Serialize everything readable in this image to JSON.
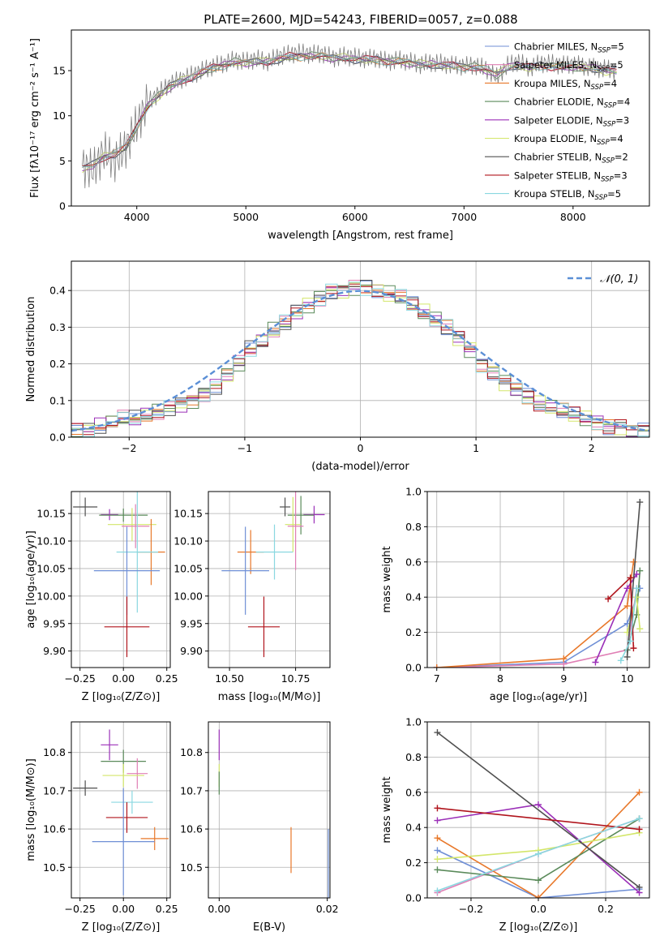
{
  "title": "PLATE=2600, MJD=54243, FIBERID=0057, z=0.088",
  "colors": {
    "chabrier_miles": "#6f8fd6",
    "salpeter_miles": "#e07fb5",
    "kroupa_miles": "#e8782a",
    "chabrier_elodie": "#5a8a5a",
    "salpeter_elodie": "#9b30b8",
    "kroupa_elodie": "#d3e66a",
    "chabrier_stelib": "#505050",
    "salpeter_stelib": "#b0141c",
    "kroupa_stelib": "#8ad8e0",
    "normal_curve": "#5b8fd6"
  },
  "chart_data": [
    {
      "type": "line",
      "panel": "spectrum",
      "xlabel": "wavelength [Angstrom, rest frame]",
      "ylabel": "Flux [fλ10⁻¹⁷ erg cm⁻² s⁻¹ A⁻¹]",
      "xlim": [
        3400,
        8700
      ],
      "ylim": [
        0,
        19.5
      ],
      "xticks": [
        "4000",
        "5000",
        "6000",
        "7000",
        "8000"
      ],
      "yticks": [
        "0",
        "5",
        "10",
        "15"
      ],
      "grid": false,
      "legend_position": "upper-right",
      "x": [
        3500,
        3600,
        3700,
        3800,
        3900,
        4000,
        4100,
        4200,
        4300,
        4400,
        4500,
        4600,
        4700,
        4800,
        4900,
        5000,
        5100,
        5200,
        5300,
        5400,
        5500,
        5600,
        5700,
        5800,
        5900,
        6000,
        6100,
        6200,
        6300,
        6400,
        6500,
        6600,
        6700,
        6800,
        6900,
        7000,
        7100,
        7200,
        7300,
        7400,
        7500,
        7600,
        7700,
        7800,
        7900,
        8000,
        8100,
        8200,
        8300,
        8400
      ],
      "observed": [
        4.5,
        4.0,
        6.0,
        5.0,
        6.5,
        9.0,
        11.5,
        12.5,
        13.5,
        14.0,
        14.5,
        15.0,
        15.5,
        15.8,
        16.2,
        16.0,
        16.3,
        16.0,
        16.6,
        16.8,
        17.0,
        16.8,
        16.9,
        16.4,
        16.6,
        16.5,
        16.3,
        16.4,
        16.0,
        16.2,
        16.0,
        15.7,
        15.9,
        15.8,
        15.6,
        15.5,
        15.6,
        15.2,
        14.3,
        15.6,
        16.0,
        15.3,
        15.8,
        15.8,
        15.6,
        15.7,
        15.5,
        15.3,
        15.2,
        15.0
      ],
      "model": [
        4.2,
        4.5,
        5.5,
        5.8,
        6.5,
        8.8,
        11.0,
        12.2,
        13.2,
        13.8,
        14.3,
        14.8,
        15.3,
        15.6,
        15.9,
        15.9,
        16.0,
        16.0,
        16.3,
        16.5,
        16.6,
        16.6,
        16.6,
        16.4,
        16.4,
        16.3,
        16.2,
        16.2,
        16.0,
        16.0,
        15.9,
        15.7,
        15.7,
        15.6,
        15.5,
        15.4,
        15.4,
        15.1,
        14.6,
        15.3,
        15.6,
        15.3,
        15.5,
        15.5,
        15.4,
        15.4,
        15.3,
        15.2,
        15.0,
        14.9
      ],
      "series": [
        {
          "name": "Chabrier MILES, N",
          "sub": "SSP",
          "suffix": "=5"
        },
        {
          "name": "Salpeter MILES, N",
          "sub": "SSP",
          "suffix": "=5"
        },
        {
          "name": "Kroupa MILES, N",
          "sub": "SSP",
          "suffix": "=4"
        },
        {
          "name": "Chabrier ELODIE, N",
          "sub": "SSP",
          "suffix": "=4"
        },
        {
          "name": "Salpeter ELODIE, N",
          "sub": "SSP",
          "suffix": "=3"
        },
        {
          "name": "Kroupa ELODIE, N",
          "sub": "SSP",
          "suffix": "=4"
        },
        {
          "name": "Chabrier STELIB, N",
          "sub": "SSP",
          "suffix": "=2"
        },
        {
          "name": "Salpeter STELIB, N",
          "sub": "SSP",
          "suffix": "=3"
        },
        {
          "name": "Kroupa STELIB, N",
          "sub": "SSP",
          "suffix": "=5"
        }
      ]
    },
    {
      "type": "histogram",
      "panel": "residuals",
      "xlabel": "(data-model)/error",
      "ylabel": "Normed distribution",
      "xlim": [
        -2.5,
        2.5
      ],
      "ylim": [
        0,
        0.48
      ],
      "xticks": [
        "−2",
        "−1",
        "0",
        "1",
        "2"
      ],
      "yticks": [
        "0.0",
        "0.1",
        "0.2",
        "0.3",
        "0.4"
      ],
      "grid": true,
      "legend": "𝒩(0, 1)",
      "legend_position": "upper-right",
      "bin_edges_start": -2.5,
      "bin_width": 0.1,
      "base_density": [
        0.02,
        0.02,
        0.03,
        0.04,
        0.05,
        0.05,
        0.06,
        0.07,
        0.08,
        0.09,
        0.1,
        0.12,
        0.14,
        0.17,
        0.2,
        0.24,
        0.26,
        0.29,
        0.31,
        0.34,
        0.36,
        0.38,
        0.4,
        0.4,
        0.41,
        0.41,
        0.4,
        0.39,
        0.38,
        0.36,
        0.34,
        0.32,
        0.3,
        0.27,
        0.24,
        0.2,
        0.18,
        0.15,
        0.13,
        0.11,
        0.09,
        0.08,
        0.07,
        0.06,
        0.05,
        0.04,
        0.03,
        0.03,
        0.02,
        0.02
      ]
    },
    {
      "type": "errorbar",
      "panel": "age-vs-Z",
      "xlabel": "Z [log₁₀(Z/Z⊙)]",
      "ylabel": "age  [log₁₀(age/yr)]",
      "xlim": [
        -0.3,
        0.27
      ],
      "ylim": [
        9.87,
        10.19
      ],
      "xticks": [
        "−0.25",
        "0.00",
        "0.25"
      ],
      "yticks": [
        "9.90",
        "9.95",
        "10.00",
        "10.05",
        "10.10",
        "10.15"
      ],
      "grid": true,
      "points": [
        {
          "series": "chabrier_stelib",
          "x": -0.22,
          "y": 10.162,
          "xerr": 0.07,
          "yerr": 0.017
        },
        {
          "series": "salpeter_elodie",
          "x": -0.08,
          "y": 10.148,
          "xerr": 0.05,
          "yerr": 0.01
        },
        {
          "series": "chabrier_elodie",
          "x": 0.0,
          "y": 10.147,
          "xerr": 0.14,
          "yerr": 0.012
        },
        {
          "series": "kroupa_elodie",
          "x": 0.05,
          "y": 10.13,
          "xerr": 0.14,
          "yerr": 0.03
        },
        {
          "series": "salpeter_miles",
          "x": 0.07,
          "y": 10.127,
          "xerr": 0.08,
          "yerr": 0.04
        },
        {
          "series": "kroupa_miles",
          "x": 0.16,
          "y": 10.08,
          "xerr": 0.08,
          "yerr": 0.06
        },
        {
          "series": "kroupa_stelib",
          "x": 0.08,
          "y": 10.08,
          "xerr": 0.12,
          "yerr": 0.11
        },
        {
          "series": "chabrier_miles",
          "x": 0.02,
          "y": 10.046,
          "xerr": 0.19,
          "yerr": 0.08
        },
        {
          "series": "salpeter_stelib",
          "x": 0.02,
          "y": 9.944,
          "xerr": 0.13,
          "yerr": 0.055
        }
      ]
    },
    {
      "type": "errorbar",
      "panel": "age-vs-mass",
      "xlabel": "mass [log₁₀(M/M⊙)]",
      "ylabel": "",
      "xlim": [
        10.42,
        10.88
      ],
      "ylim": [
        9.87,
        10.19
      ],
      "xticks": [
        "10.50",
        "10.75"
      ],
      "yticks": [
        "9.90",
        "9.95",
        "10.00",
        "10.05",
        "10.10",
        "10.15"
      ],
      "grid": true,
      "points": [
        {
          "series": "chabrier_stelib",
          "x": 10.71,
          "y": 10.162,
          "xerr": 0.02,
          "yerr": 0.017
        },
        {
          "series": "salpeter_elodie",
          "x": 10.82,
          "y": 10.148,
          "xerr": 0.04,
          "yerr": 0.016
        },
        {
          "series": "chabrier_elodie",
          "x": 10.77,
          "y": 10.147,
          "xerr": 0.05,
          "yerr": 0.035
        },
        {
          "series": "kroupa_elodie",
          "x": 10.74,
          "y": 10.13,
          "xerr": 0.03,
          "yerr": 0.05
        },
        {
          "series": "salpeter_miles",
          "x": 10.75,
          "y": 10.127,
          "xerr": 0.03,
          "yerr": 0.08
        },
        {
          "series": "kroupa_miles",
          "x": 10.58,
          "y": 10.08,
          "xerr": 0.05,
          "yerr": 0.04
        },
        {
          "series": "kroupa_stelib",
          "x": 10.67,
          "y": 10.08,
          "xerr": 0.07,
          "yerr": 0.05
        },
        {
          "series": "chabrier_miles",
          "x": 10.56,
          "y": 10.046,
          "xerr": 0.09,
          "yerr": 0.08
        },
        {
          "series": "salpeter_stelib",
          "x": 10.63,
          "y": 9.944,
          "xerr": 0.06,
          "yerr": 0.055
        }
      ]
    },
    {
      "type": "line",
      "panel": "weight-vs-age",
      "xlabel": "age  [log₁₀(age/yr)]",
      "ylabel": "mass weight",
      "xlim": [
        6.85,
        10.35
      ],
      "ylim": [
        0,
        1.0
      ],
      "xticks": [
        "7",
        "8",
        "9",
        "10"
      ],
      "yticks": [
        "0.0",
        "0.2",
        "0.4",
        "0.6",
        "0.8",
        "1.0"
      ],
      "grid": true,
      "series": [
        {
          "key": "chabrier_miles",
          "x": [
            7.0,
            9.0,
            10.0,
            10.2
          ],
          "y": [
            0.0,
            0.03,
            0.25,
            0.45
          ]
        },
        {
          "key": "salpeter_miles",
          "x": [
            7.0,
            9.0,
            10.0,
            10.15
          ],
          "y": [
            0.0,
            0.02,
            0.1,
            0.45
          ]
        },
        {
          "key": "kroupa_miles",
          "x": [
            7.0,
            9.0,
            10.0,
            10.1
          ],
          "y": [
            0.0,
            0.05,
            0.35,
            0.6
          ]
        },
        {
          "key": "chabrier_elodie",
          "x": [
            10.0,
            10.15,
            10.2
          ],
          "y": [
            0.1,
            0.3,
            0.55
          ]
        },
        {
          "key": "salpeter_elodie",
          "x": [
            9.5,
            10.0,
            10.15
          ],
          "y": [
            0.03,
            0.45,
            0.53
          ]
        },
        {
          "key": "kroupa_elodie",
          "x": [
            10.0,
            10.15,
            10.2
          ],
          "y": [
            0.2,
            0.4,
            0.22
          ]
        },
        {
          "key": "chabrier_stelib",
          "x": [
            10.0,
            10.2
          ],
          "y": [
            0.06,
            0.94
          ]
        },
        {
          "key": "salpeter_stelib",
          "x": [
            9.7,
            10.05,
            10.1
          ],
          "y": [
            0.39,
            0.51,
            0.11
          ]
        },
        {
          "key": "kroupa_stelib",
          "x": [
            9.9,
            10.05,
            10.15
          ],
          "y": [
            0.04,
            0.15,
            0.45
          ]
        }
      ]
    },
    {
      "type": "errorbar",
      "panel": "mass-vs-Z",
      "xlabel": "Z [log₁₀(Z/Z⊙)]",
      "ylabel": "mass [log₁₀(M/M⊙)]",
      "xlim": [
        -0.3,
        0.27
      ],
      "ylim": [
        10.42,
        10.88
      ],
      "xticks": [
        "−0.25",
        "0.00",
        "0.25"
      ],
      "yticks": [
        "10.5",
        "10.6",
        "10.7",
        "10.8"
      ],
      "grid": true,
      "points": [
        {
          "series": "salpeter_elodie",
          "x": -0.08,
          "y": 10.82,
          "xerr": 0.05,
          "yerr": 0.04
        },
        {
          "series": "chabrier_elodie",
          "x": 0.0,
          "y": 10.777,
          "xerr": 0.13,
          "yerr": 0.03
        },
        {
          "series": "salpeter_miles",
          "x": 0.08,
          "y": 10.745,
          "xerr": 0.06,
          "yerr": 0.04
        },
        {
          "series": "kroupa_elodie",
          "x": 0.0,
          "y": 10.74,
          "xerr": 0.12,
          "yerr": 0.03
        },
        {
          "series": "chabrier_stelib",
          "x": -0.22,
          "y": 10.707,
          "xerr": 0.07,
          "yerr": 0.02
        },
        {
          "series": "kroupa_stelib",
          "x": 0.05,
          "y": 10.67,
          "xerr": 0.12,
          "yerr": 0.03
        },
        {
          "series": "salpeter_stelib",
          "x": 0.02,
          "y": 10.63,
          "xerr": 0.12,
          "yerr": 0.04
        },
        {
          "series": "kroupa_miles",
          "x": 0.18,
          "y": 10.575,
          "xerr": 0.08,
          "yerr": 0.03
        },
        {
          "series": "chabrier_miles",
          "x": 0.0,
          "y": 10.567,
          "xerr": 0.18,
          "yerr": 0.14
        }
      ]
    },
    {
      "type": "errorbar",
      "panel": "mass-vs-ebv",
      "xlabel": "E(B-V)",
      "ylabel": "",
      "xlim": [
        -0.002,
        0.0205
      ],
      "ylim": [
        10.42,
        10.88
      ],
      "xticks": [
        "0.00",
        "0.02"
      ],
      "yticks": [
        "10.5",
        "10.6",
        "10.7",
        "10.8"
      ],
      "grid": true,
      "points": [
        {
          "series": "salpeter_elodie",
          "x": 0.0,
          "y": 10.82,
          "xerr": 0,
          "yerr": 0.04
        },
        {
          "series": "kroupa_elodie",
          "x": 0.0,
          "y": 10.74,
          "xerr": 0,
          "yerr": 0.03
        },
        {
          "series": "chabrier_elodie",
          "x": 0.0,
          "y": 10.72,
          "xerr": 0,
          "yerr": 0.03
        },
        {
          "series": "kroupa_miles",
          "x": 0.0133,
          "y": 10.545,
          "xerr": 0,
          "yerr": 0.06
        },
        {
          "series": "chabrier_miles",
          "x": 0.0202,
          "y": 10.51,
          "xerr": 0,
          "yerr": 0.09
        }
      ]
    },
    {
      "type": "line",
      "panel": "weight-vs-Z",
      "xlabel": "Z [log₁₀(Z/Z⊙)]",
      "ylabel": "mass weight",
      "xlim": [
        -0.33,
        0.33
      ],
      "ylim": [
        0,
        1.0
      ],
      "xticks": [
        "−0.2",
        "0.0",
        "0.2"
      ],
      "yticks": [
        "0.0",
        "0.2",
        "0.4",
        "0.6",
        "0.8",
        "1.0"
      ],
      "grid": true,
      "series": [
        {
          "key": "chabrier_miles",
          "x": [
            -0.3,
            0.0,
            0.3
          ],
          "y": [
            0.27,
            0.0,
            0.05
          ]
        },
        {
          "key": "salpeter_miles",
          "x": [
            -0.3,
            0.0,
            0.3
          ],
          "y": [
            0.03,
            0.25,
            0.45
          ]
        },
        {
          "key": "kroupa_miles",
          "x": [
            -0.3,
            0.0,
            0.3
          ],
          "y": [
            0.34,
            0.0,
            0.6
          ]
        },
        {
          "key": "chabrier_elodie",
          "x": [
            -0.3,
            0.0,
            0.3
          ],
          "y": [
            0.16,
            0.1,
            0.45
          ]
        },
        {
          "key": "salpeter_elodie",
          "x": [
            -0.3,
            0.0,
            0.3
          ],
          "y": [
            0.44,
            0.53,
            0.03
          ]
        },
        {
          "key": "kroupa_elodie",
          "x": [
            -0.3,
            0.0,
            0.3
          ],
          "y": [
            0.22,
            0.27,
            0.37
          ]
        },
        {
          "key": "chabrier_stelib",
          "x": [
            -0.3,
            0.3
          ],
          "y": [
            0.94,
            0.06
          ]
        },
        {
          "key": "salpeter_stelib",
          "x": [
            -0.3,
            0.3
          ],
          "y": [
            0.51,
            0.39
          ]
        },
        {
          "key": "kroupa_stelib",
          "x": [
            -0.3,
            0.0,
            0.3
          ],
          "y": [
            0.04,
            0.25,
            0.45
          ]
        }
      ]
    }
  ]
}
